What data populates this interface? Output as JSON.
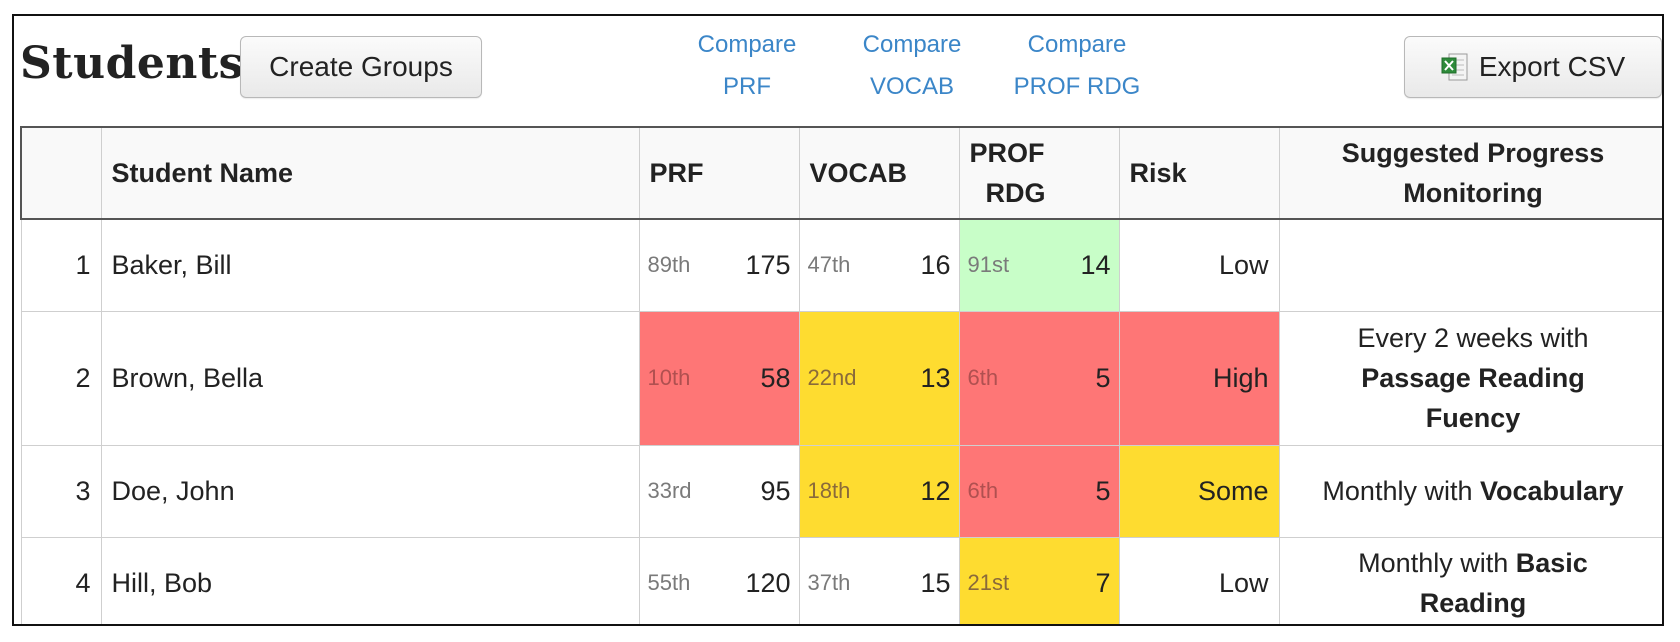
{
  "header": {
    "title": "Students",
    "create_groups_label": "Create Groups",
    "export_label": "Export CSV",
    "compare": [
      {
        "line1": "Compare",
        "line2": "PRF"
      },
      {
        "line1": "Compare",
        "line2": "VOCAB"
      },
      {
        "line1": "Compare",
        "line2": "PROF RDG"
      }
    ]
  },
  "table": {
    "columns": {
      "index": "",
      "name": "Student Name",
      "prf": "PRF",
      "vocab": "VOCAB",
      "prof_line1": "PROF",
      "prof_line2": "RDG",
      "risk": "Risk",
      "sugg_line1": "Suggested Progress",
      "sugg_line2": "Monitoring"
    },
    "rows": [
      {
        "index": "1",
        "name": "Baker, Bill",
        "prf": {
          "pct": "89th",
          "val": "175",
          "level": "none"
        },
        "vocab": {
          "pct": "47th",
          "val": "16",
          "level": "none"
        },
        "prof": {
          "pct": "91st",
          "val": "14",
          "level": "green"
        },
        "risk": {
          "text": "Low",
          "level": "none"
        },
        "sugg": {
          "pre": "",
          "bold": "",
          "line2": ""
        }
      },
      {
        "index": "2",
        "name": "Brown, Bella",
        "prf": {
          "pct": "10th",
          "val": "58",
          "level": "red"
        },
        "vocab": {
          "pct": "22nd",
          "val": "13",
          "level": "yellow"
        },
        "prof": {
          "pct": "6th",
          "val": "5",
          "level": "red"
        },
        "risk": {
          "text": "High",
          "level": "red"
        },
        "sugg": {
          "pre": "Every 2 weeks with",
          "bold": "Passage Reading",
          "line2": "Fuency"
        }
      },
      {
        "index": "3",
        "name": "Doe, John",
        "prf": {
          "pct": "33rd",
          "val": "95",
          "level": "none"
        },
        "vocab": {
          "pct": "18th",
          "val": "12",
          "level": "yellow"
        },
        "prof": {
          "pct": "6th",
          "val": "5",
          "level": "red"
        },
        "risk": {
          "text": "Some",
          "level": "yellow"
        },
        "sugg": {
          "pre": "Monthly with",
          "bold": "Vocabulary",
          "line2": ""
        }
      },
      {
        "index": "4",
        "name": "Hill, Bob",
        "prf": {
          "pct": "55th",
          "val": "120",
          "level": "none"
        },
        "vocab": {
          "pct": "37th",
          "val": "15",
          "level": "none"
        },
        "prof": {
          "pct": "21st",
          "val": "7",
          "level": "yellow"
        },
        "risk": {
          "text": "Low",
          "level": "none"
        },
        "sugg": {
          "pre": "Monthly with",
          "bold": "Basic",
          "line2": "Reading"
        }
      }
    ]
  },
  "colors": {
    "red": "#fe7676",
    "yellow": "#fedc30",
    "green": "#c8fec8",
    "link": "#3b86c8"
  },
  "icons": {
    "export": "excel-icon"
  }
}
